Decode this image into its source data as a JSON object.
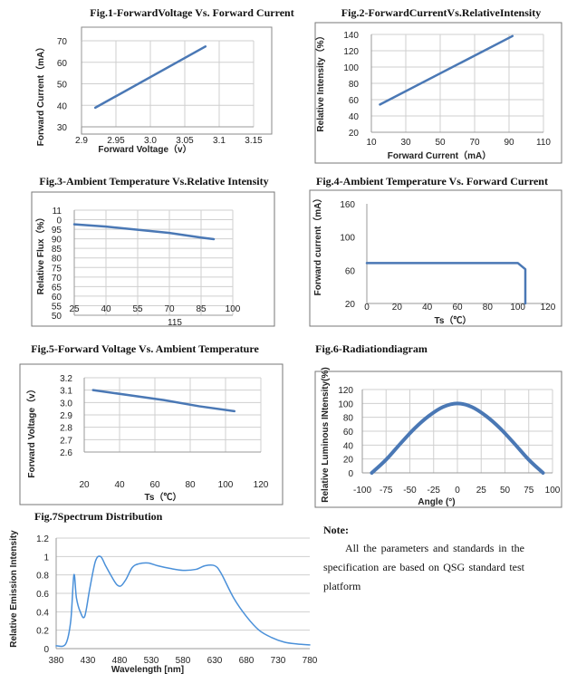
{
  "chart_data": [
    {
      "id": "fig1",
      "type": "line",
      "title": "Fig.1-ForwardVoltage Vs. Forward Current",
      "xlabel": "Forward Voltage（v）",
      "ylabel": "Forward Current（mA）",
      "xlim": [
        2.9,
        3.15
      ],
      "ylim": [
        25,
        70
      ],
      "xticks": [
        "2.9",
        "2.95",
        "3.0",
        "3.05",
        "3.1",
        "3.15"
      ],
      "yticks": [
        "70",
        "60",
        "50",
        "40",
        "30"
      ],
      "grid": true,
      "series": [
        {
          "x": [
            2.92,
            3.08
          ],
          "y": [
            35,
            67
          ]
        }
      ],
      "color": "#4a78b5"
    },
    {
      "id": "fig2",
      "type": "line",
      "title": "Fig.2-ForwardCurrentVs.RelativeIntensity",
      "xlabel": "Forward Current（mA）",
      "ylabel": "Relative Intensity（%）",
      "xlim": [
        10,
        110
      ],
      "ylim": [
        20,
        140
      ],
      "xticks": [
        "10",
        "30",
        "50",
        "70",
        "90",
        "110"
      ],
      "yticks": [
        "140",
        "120",
        "100",
        "80",
        "60",
        "40",
        "20"
      ],
      "grid": true,
      "series": [
        {
          "x": [
            15,
            92
          ],
          "y": [
            54,
            138
          ]
        }
      ],
      "color": "#4a78b5"
    },
    {
      "id": "fig3",
      "type": "line",
      "title": "Fig.3-Ambient Temperature Vs.Relative Intensity",
      "xlabel": "",
      "ylabel": "Relative Flux（%）",
      "xlim": [
        25,
        100
      ],
      "ylim": [
        47,
        114
      ],
      "xticks": [
        "25",
        "40",
        "55",
        "70",
        "85",
        "100"
      ],
      "xticks_extra": "115",
      "yticks": [
        "11",
        "0",
        "95",
        "90",
        "85",
        "80",
        "75",
        "70",
        "65",
        "60",
        "55",
        "50"
      ],
      "grid": true,
      "series": [
        {
          "x": [
            25,
            40,
            55,
            70,
            85,
            91
          ],
          "y": [
            105,
            103.5,
            101.5,
            99.5,
            96.5,
            95.5
          ]
        }
      ],
      "color": "#4a78b5"
    },
    {
      "id": "fig4",
      "type": "line",
      "title": "Fig.4-Ambient Temperature Vs. Forward Current",
      "xlabel": "Ts（℃）",
      "ylabel": "Forward current（mA）",
      "xlim": [
        0,
        120
      ],
      "ylim": [
        0,
        160
      ],
      "xticks": [
        "0",
        "20",
        "40",
        "60",
        "80",
        "100",
        "120"
      ],
      "yticks": [
        "160",
        "100",
        "60",
        "20"
      ],
      "grid": false,
      "series": [
        {
          "x": [
            0,
            100,
            105,
            105
          ],
          "y": [
            65,
            65,
            55,
            0
          ]
        }
      ],
      "color": "#4a78b5"
    },
    {
      "id": "fig5",
      "type": "line",
      "title": "Fig.5-Forward Voltage Vs. Ambient Temperature",
      "xlabel": "Ts（℃）",
      "ylabel": "Forward Voltage（v）",
      "xlim": [
        20,
        120
      ],
      "ylim": [
        2.6,
        3.2
      ],
      "xticks": [
        "20",
        "40",
        "60",
        "80",
        "100",
        "120"
      ],
      "yticks": [
        "3.2",
        "3.1",
        "3.0",
        "2.9",
        "2.8",
        "2.7",
        "2.6"
      ],
      "grid": true,
      "series": [
        {
          "x": [
            25,
            45,
            65,
            85,
            105
          ],
          "y": [
            3.1,
            3.06,
            3.02,
            2.97,
            2.93
          ]
        }
      ],
      "color": "#4a78b5"
    },
    {
      "id": "fig6",
      "type": "line",
      "title": "Fig.6-Radiationdiagram",
      "xlabel": "Angle (°)",
      "ylabel": "Relative Luminous INtensity(%)",
      "xlim": [
        -100,
        100
      ],
      "ylim": [
        0,
        120
      ],
      "xticks": [
        "-100",
        "-75",
        "-50",
        "-25",
        "0",
        "25",
        "50",
        "75",
        "100"
      ],
      "yticks": [
        "120",
        "100",
        "80",
        "60",
        "40",
        "20",
        "0"
      ],
      "grid": true,
      "series": [
        {
          "x": [
            -90,
            -75,
            -60,
            -45,
            -30,
            -15,
            0,
            15,
            30,
            45,
            60,
            75,
            90
          ],
          "y": [
            0,
            19,
            42,
            64,
            82,
            95,
            100,
            95,
            82,
            64,
            42,
            19,
            0
          ]
        }
      ],
      "color": "#4a78b5"
    },
    {
      "id": "fig7",
      "type": "line",
      "title": "Fig.7Spectrum Distribution",
      "xlabel": "Wavelength [nm]",
      "ylabel": "Relative Emission Intensity",
      "xlim": [
        380,
        780
      ],
      "ylim": [
        0,
        1.2
      ],
      "xticks": [
        "380",
        "430",
        "480",
        "530",
        "580",
        "630",
        "680",
        "730",
        "780"
      ],
      "yticks": [
        "1.2",
        "1",
        "0.8",
        "0.6",
        "0.4",
        "0.2",
        "0"
      ],
      "grid": true,
      "series": [
        {
          "x": [
            380,
            395,
            403,
            408,
            412,
            418,
            425,
            433,
            442,
            450,
            458,
            466,
            475,
            482,
            490,
            500,
            510,
            525,
            540,
            560,
            580,
            600,
            615,
            630,
            640,
            660,
            680,
            700,
            720,
            740,
            760,
            780
          ],
          "y": [
            0.03,
            0.05,
            0.3,
            0.8,
            0.55,
            0.4,
            0.35,
            0.65,
            0.95,
            1.0,
            0.9,
            0.8,
            0.7,
            0.68,
            0.75,
            0.88,
            0.92,
            0.93,
            0.9,
            0.87,
            0.85,
            0.86,
            0.9,
            0.9,
            0.82,
            0.55,
            0.35,
            0.2,
            0.12,
            0.07,
            0.05,
            0.04
          ]
        }
      ],
      "color": "#4a90d9"
    }
  ],
  "note": {
    "title": "Note:",
    "body": "All the parameters and standards in the specification are based on QSG standard test platform"
  }
}
